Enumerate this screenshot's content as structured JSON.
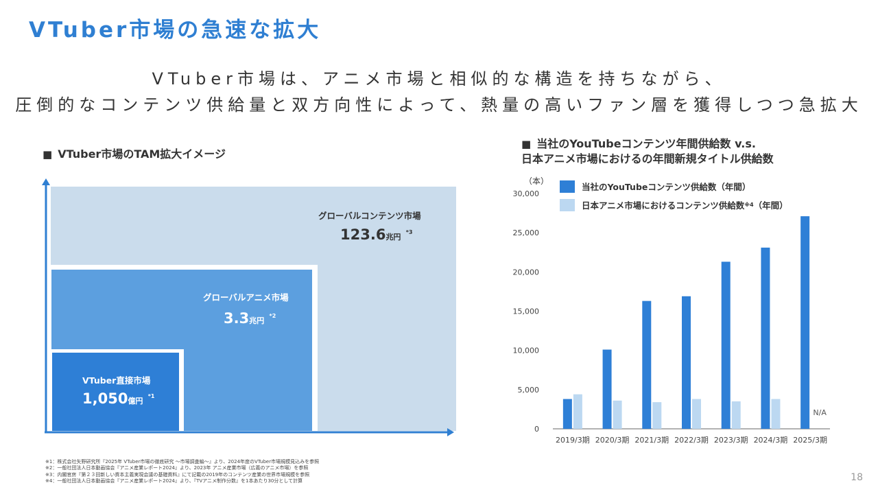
{
  "title": "VTuber市場の急速な拡大",
  "lead": {
    "line1": "VTuber市場は、アニメ市場と相似的な構造を持ちながら、",
    "line2": "圧倒的なコンテンツ供給量と双方向性によって、熱量の高いファン層を獲得しつつ急拡大"
  },
  "left_section": {
    "marker": "■",
    "heading": "VTuber市場のTAM拡大イメージ",
    "global_content": {
      "label": "グローバルコンテンツ市場",
      "value": "123.6",
      "unit": "兆円",
      "note": "*3"
    },
    "global_anime": {
      "label": "グローバルアニメ市場",
      "value": "3.3",
      "unit": "兆円",
      "note": "*2"
    },
    "vtuber_direct": {
      "label": "VTuber直接市場",
      "value": "1,050",
      "unit": "億円",
      "note": "*1"
    }
  },
  "right_section": {
    "marker": "■",
    "heading_line1": "当社のYouTubeコンテンツ年間供給数 v.s.",
    "heading_line2": "日本アニメ市場におけるの年間新規タイトル供給数",
    "unit_label": "（本）",
    "legend": [
      {
        "label": "当社のYouTubeコンテンツ供給数（年間）",
        "sup": "",
        "suffix": ""
      },
      {
        "label": "日本アニメ市場におけるコンテンツ供給数",
        "sup": "※4",
        "suffix": "（年間）"
      }
    ]
  },
  "chart_data": {
    "type": "bar",
    "categories": [
      "2019/3期",
      "2020/3期",
      "2021/3期",
      "2022/3期",
      "2023/3期",
      "2024/3期",
      "2025/3期"
    ],
    "series": [
      {
        "name": "当社のYouTubeコンテンツ供給数（年間）",
        "color": "#2e7fd6",
        "values": [
          3800,
          10100,
          16300,
          16900,
          21300,
          23100,
          27100
        ]
      },
      {
        "name": "日本アニメ市場におけるコンテンツ供給数※4（年間）",
        "color": "#bcd8f1",
        "values": [
          4400,
          3600,
          3400,
          3800,
          3500,
          3800,
          null
        ]
      }
    ],
    "y_ticks": [
      "0",
      "5,000",
      "10,000",
      "15,000",
      "20,000",
      "25,000",
      "30,000"
    ],
    "ylim": [
      0,
      30000
    ],
    "annotations": [
      {
        "category": "2025/3期",
        "text": "N/A"
      }
    ],
    "grid": false,
    "ylabel": "（本）"
  },
  "footnotes": [
    "※1：株式会社矢野研究所『2025年 VTuber市場の徹底研究 ～市場調査編～』より、2024年度のVTuber市場規模見込みを参照",
    "※2：一般社団法人日本動画協会『アニメ産業レポート2024』より、2023年 アニメ産業市場（広義のアニメ市場）を参照",
    "※3：内閣官房『第２３回新しい資本主義実現会議の基礎資料』にて記載の2019年のコンテンツ産業の世界市場規模を参照",
    "※4：一般社団法人日本動画協会『アニメ産業レポート2024』より、『TVアニメ制作分数』を1本あたり30分として計算"
  ],
  "page_number": "18",
  "colors": {
    "accent": "#2f7fd2",
    "bar_primary": "#2e7fd6",
    "bar_secondary": "#bcd8f1",
    "tam_outer": "#cadcec",
    "tam_mid": "#5c9fdf",
    "tam_inner": "#2e7fd6"
  }
}
